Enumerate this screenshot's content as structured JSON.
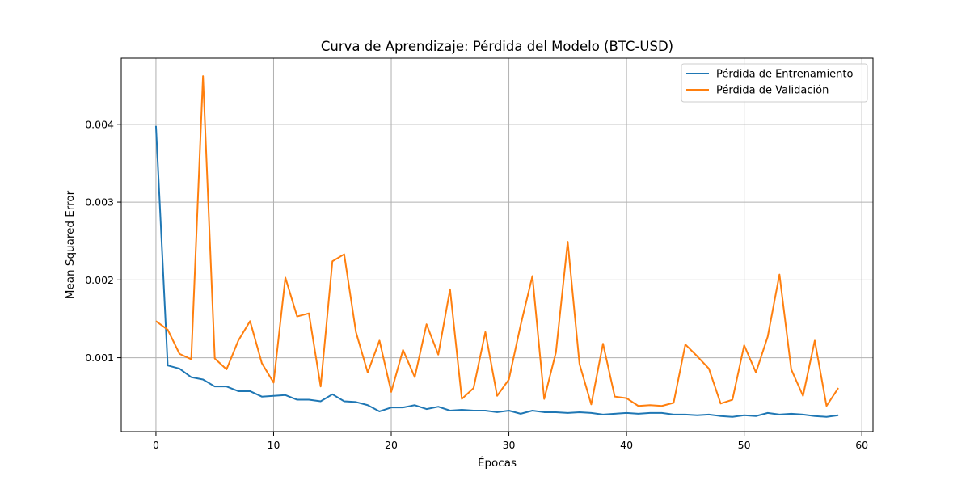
{
  "chart_data": {
    "type": "line",
    "title": "Curva de Aprendizaje: Pérdida del Modelo (BTC-USD)",
    "xlabel": "Épocas",
    "ylabel": "Mean Squared Error",
    "xlim": [
      -2.95,
      60.95
    ],
    "ylim": [
      5e-05,
      0.00485
    ],
    "xticks": [
      0,
      10,
      20,
      30,
      40,
      50,
      60
    ],
    "yticks": [
      0.001,
      0.002,
      0.003,
      0.004
    ],
    "xtick_labels": [
      "0",
      "10",
      "20",
      "30",
      "40",
      "50",
      "60"
    ],
    "ytick_labels": [
      "0.001",
      "0.002",
      "0.003",
      "0.004"
    ],
    "grid": true,
    "legend_position": "top-right",
    "x": [
      0,
      1,
      2,
      3,
      4,
      5,
      6,
      7,
      8,
      9,
      10,
      11,
      12,
      13,
      14,
      15,
      16,
      17,
      18,
      19,
      20,
      21,
      22,
      23,
      24,
      25,
      26,
      27,
      28,
      29,
      30,
      31,
      32,
      33,
      34,
      35,
      36,
      37,
      38,
      39,
      40,
      41,
      42,
      43,
      44,
      45,
      46,
      47,
      48,
      49,
      50,
      51,
      52,
      53,
      54,
      55,
      56,
      57,
      58
    ],
    "series": [
      {
        "name": "Pérdida de Entrenamiento",
        "color": "#1f77b4",
        "values": [
          0.00398,
          0.0009,
          0.00086,
          0.00075,
          0.00072,
          0.00063,
          0.00063,
          0.00057,
          0.00057,
          0.0005,
          0.00051,
          0.00052,
          0.00046,
          0.00046,
          0.00044,
          0.00053,
          0.00044,
          0.00043,
          0.00039,
          0.00031,
          0.00036,
          0.00036,
          0.00039,
          0.00034,
          0.00037,
          0.00032,
          0.00033,
          0.00032,
          0.00032,
          0.0003,
          0.00032,
          0.00028,
          0.00032,
          0.0003,
          0.0003,
          0.00029,
          0.0003,
          0.00029,
          0.00027,
          0.00028,
          0.00029,
          0.00028,
          0.00029,
          0.00029,
          0.00027,
          0.00027,
          0.00026,
          0.00027,
          0.00025,
          0.00024,
          0.00026,
          0.00025,
          0.00029,
          0.00027,
          0.00028,
          0.00027,
          0.00025,
          0.00024,
          0.00026
        ]
      },
      {
        "name": "Pérdida de Validación",
        "color": "#ff7f0e",
        "values": [
          0.00147,
          0.00136,
          0.00105,
          0.00098,
          0.00462,
          0.00099,
          0.00085,
          0.00122,
          0.00147,
          0.00093,
          0.00068,
          0.00203,
          0.00153,
          0.00157,
          0.00063,
          0.00224,
          0.00233,
          0.00133,
          0.00081,
          0.00122,
          0.00056,
          0.0011,
          0.00075,
          0.00143,
          0.00104,
          0.00188,
          0.00047,
          0.00061,
          0.00133,
          0.00051,
          0.00072,
          0.00142,
          0.00205,
          0.00047,
          0.00107,
          0.00249,
          0.00092,
          0.0004,
          0.00118,
          0.0005,
          0.00048,
          0.00038,
          0.00039,
          0.00038,
          0.00042,
          0.00117,
          0.00102,
          0.00086,
          0.00041,
          0.00046,
          0.00116,
          0.00081,
          0.00127,
          0.00207,
          0.00085,
          0.00051,
          0.00122,
          0.00038,
          0.00061
        ]
      }
    ]
  }
}
